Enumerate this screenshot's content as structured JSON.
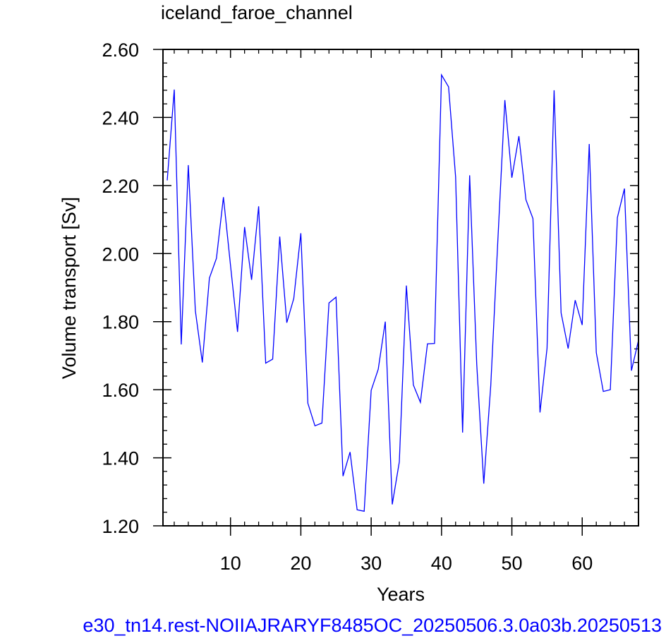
{
  "chart_data": {
    "type": "line",
    "title": "iceland_faroe_channel",
    "xlabel": "Years",
    "ylabel": "Volume transport [Sv]",
    "xlim": [
      0.4,
      68
    ],
    "ylim": [
      1.2,
      2.6
    ],
    "x_ticks": [
      10,
      20,
      30,
      40,
      50,
      60
    ],
    "y_ticks": [
      "1.20",
      "1.40",
      "1.60",
      "1.80",
      "2.00",
      "2.20",
      "2.40",
      "2.60"
    ],
    "grid": false,
    "line_color": "#0000ff",
    "series": [
      {
        "x": [
          1,
          2,
          3,
          4,
          5,
          6,
          7,
          8,
          9,
          10,
          11,
          12,
          13,
          14,
          15,
          16,
          17,
          18,
          19,
          20,
          21,
          22,
          23,
          24,
          25,
          26,
          27,
          28,
          29,
          30,
          31,
          32,
          33,
          34,
          35,
          36,
          37,
          38,
          39,
          40,
          41,
          42,
          43,
          44,
          45,
          46,
          47,
          48,
          49,
          50,
          51,
          52,
          53,
          54,
          55,
          56,
          57,
          58,
          59,
          60,
          61,
          62,
          63,
          64,
          65,
          66,
          67,
          68
        ],
        "values": [
          2.215,
          2.482,
          1.733,
          2.26,
          1.832,
          1.68,
          1.928,
          1.986,
          2.166,
          1.966,
          1.77,
          2.078,
          1.923,
          2.139,
          1.678,
          1.69,
          2.05,
          1.797,
          1.868,
          2.06,
          1.56,
          1.494,
          1.502,
          1.855,
          1.872,
          1.346,
          1.417,
          1.247,
          1.243,
          1.598,
          1.66,
          1.8,
          1.263,
          1.388,
          1.906,
          1.614,
          1.563,
          1.735,
          1.736,
          2.525,
          2.49,
          2.225,
          1.474,
          2.23,
          1.676,
          1.324,
          1.612,
          2.036,
          2.451,
          2.223,
          2.345,
          2.158,
          2.103,
          1.533,
          1.722,
          2.48,
          1.826,
          1.721,
          1.863,
          1.79,
          2.322,
          1.709,
          1.595,
          1.6,
          2.106,
          2.191,
          1.656,
          1.745
        ]
      }
    ]
  },
  "footer_caption": "e30_tn14.rest-NOIIAJRARYF8485OC_20250506.3.0a03b.20250513"
}
